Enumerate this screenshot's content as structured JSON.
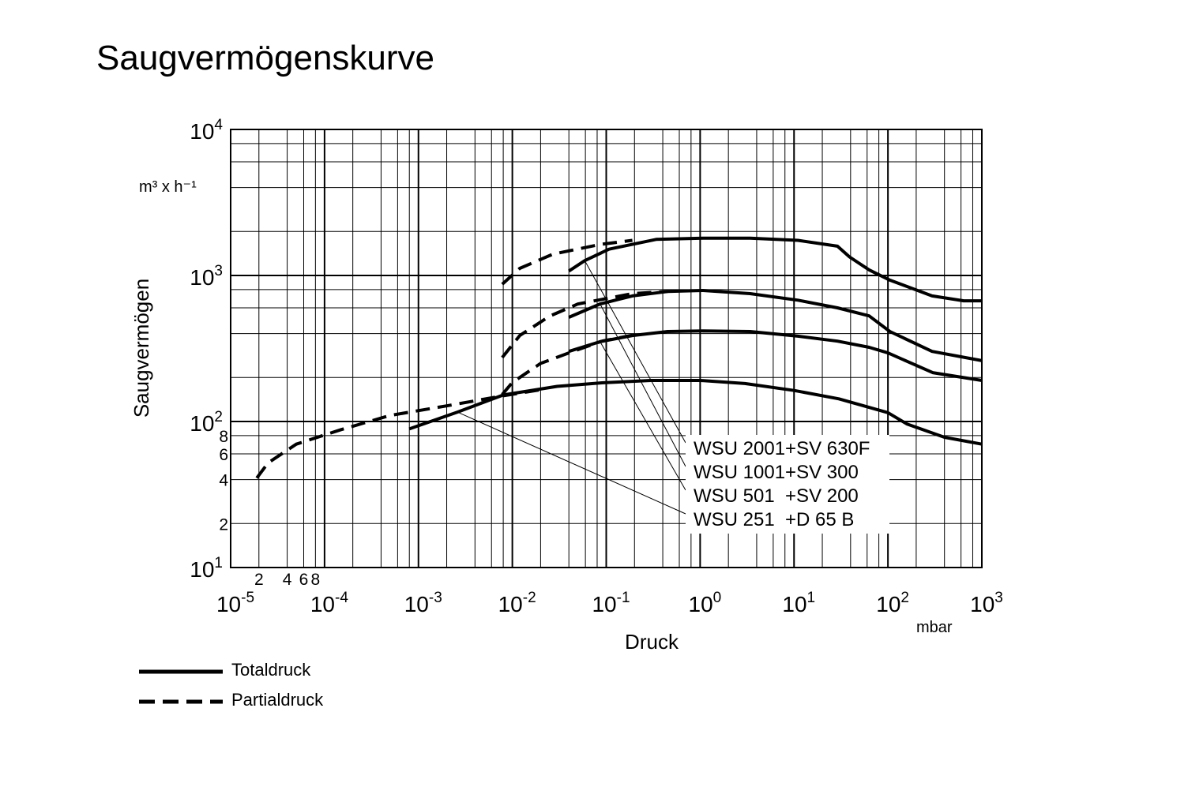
{
  "chart_data": {
    "type": "line",
    "title": "Saugvermögenskurve",
    "x_label": "Druck",
    "x_unit": "mbar",
    "y_label": "Saugvermögen",
    "y_unit": "m³ x h⁻¹",
    "log_x": true,
    "log_y": true,
    "grid": true,
    "minor_grid": [
      2,
      4,
      6,
      8
    ],
    "color": "#000000",
    "xlim": [
      1e-05,
      1000
    ],
    "ylim": [
      10,
      10000
    ],
    "xticks": [
      {
        "value": 1e-05,
        "label": "10",
        "exponent": "-5"
      },
      {
        "value": 0.0001,
        "label": "10",
        "exponent": "-4"
      },
      {
        "value": 0.001,
        "label": "10",
        "exponent": "-3"
      },
      {
        "value": 0.01,
        "label": "10",
        "exponent": "-2"
      },
      {
        "value": 0.1,
        "label": "10",
        "exponent": "-1"
      },
      {
        "value": 1,
        "label": "10",
        "exponent": "0"
      },
      {
        "value": 10,
        "label": "10",
        "exponent": "1"
      },
      {
        "value": 100,
        "label": "10",
        "exponent": "2"
      },
      {
        "value": 1000,
        "label": "10",
        "exponent": "3"
      }
    ],
    "yticks": [
      {
        "value": 10,
        "label": "10",
        "exponent": "1"
      },
      {
        "value": 100,
        "label": "10",
        "exponent": "2"
      },
      {
        "value": 1000,
        "label": "10",
        "exponent": "3"
      },
      {
        "value": 10000,
        "label": "10",
        "exponent": "4"
      }
    ],
    "x_minor_ticks": [
      {
        "value": 2e-05,
        "label": "2"
      },
      {
        "value": 4e-05,
        "label": "4"
      },
      {
        "value": 6e-05,
        "label": "6"
      },
      {
        "value": 8e-05,
        "label": "8"
      }
    ],
    "y_minor_ticks": [
      {
        "value": 80,
        "label": "8"
      },
      {
        "value": 60,
        "label": "6"
      },
      {
        "value": 40,
        "label": "4"
      },
      {
        "value": 20,
        "label": "2"
      }
    ],
    "legend": [
      {
        "label": "Totaldruck",
        "dashed": false
      },
      {
        "label": "Partialdruck",
        "dashed": true
      }
    ],
    "curves": [
      {
        "name": "WSU 2001+SV 630F",
        "total": {
          "x": [
            0.04,
            0.059,
            0.107,
            0.34,
            1.07,
            3.4,
            11,
            29,
            39,
            63,
            105,
            295,
            640,
            1000
          ],
          "values": [
            1072,
            1264,
            1513,
            1767,
            1800,
            1800,
            1740,
            1587,
            1340,
            1093,
            929,
            724,
            671,
            671
          ]
        },
        "partial": {
          "x": [
            0.0078,
            0.012,
            0.027,
            0.086,
            0.19
          ],
          "values": [
            871,
            1119,
            1400,
            1630,
            1740
          ]
        }
      },
      {
        "name": "WSU 1001+SV 300",
        "total": {
          "x": [
            0.04,
            0.086,
            0.19,
            0.45,
            1.07,
            3.4,
            11,
            29,
            63,
            105,
            295,
            1000
          ],
          "values": [
            517,
            638,
            724,
            777,
            789,
            751,
            677,
            600,
            529,
            413,
            302,
            261
          ]
        },
        "partial": {
          "x": [
            0.0078,
            0.012,
            0.025,
            0.05,
            0.19,
            0.45
          ],
          "values": [
            274,
            388,
            527,
            638,
            751,
            777
          ]
        }
      },
      {
        "name": "WSU 501  +SV 200",
        "total": {
          "x": [
            0.04,
            0.086,
            0.19,
            0.45,
            1.07,
            3.4,
            11,
            29,
            63,
            100,
            300,
            1000
          ],
          "values": [
            302,
            352,
            388,
            413,
            417,
            413,
            384,
            355,
            322,
            295,
            216,
            191
          ]
        },
        "partial": {
          "x": [
            0.0078,
            0.01,
            0.02,
            0.04,
            0.09,
            0.19
          ],
          "values": [
            153,
            185,
            250,
            295,
            355,
            390
          ]
        }
      },
      {
        "name": "WSU 251  +D 65 B",
        "total": {
          "x": [
            0.0008,
            0.0026,
            0.008,
            0.03,
            0.09,
            0.3,
            1,
            3,
            10,
            30,
            100,
            160,
            400,
            1000
          ],
          "values": [
            89,
            116,
            152,
            174,
            184,
            191,
            191,
            182,
            163,
            143,
            115,
            96,
            78,
            70
          ]
        },
        "partial": {
          "x": [
            1.9e-05,
            2.5e-05,
            5e-05,
            0.00015,
            0.0005,
            0.002,
            0.008,
            0.02
          ],
          "values": [
            41,
            52,
            70,
            88,
            110,
            128,
            150,
            165
          ]
        }
      }
    ]
  }
}
